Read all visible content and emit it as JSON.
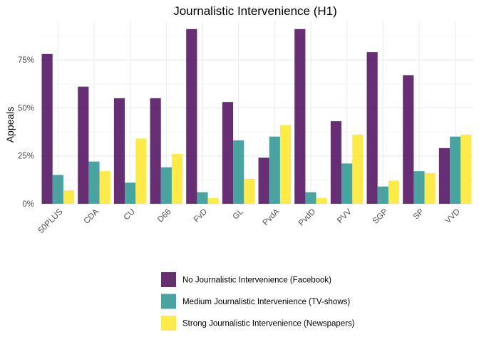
{
  "chart_data": {
    "type": "bar",
    "title": "Journalistic Intervenience (H1)",
    "xlabel": "",
    "ylabel": "Appeals",
    "ylim": [
      0,
      0.95
    ],
    "y_ticks": [
      0,
      0.25,
      0.5,
      0.75
    ],
    "y_tick_labels": [
      "0%",
      "25%",
      "50%",
      "75%"
    ],
    "grid": true,
    "legend_position": "bottom",
    "categories": [
      "50PLUS",
      "CDA",
      "CU",
      "D66",
      "FvD",
      "GL",
      "PvdA",
      "PvdD",
      "PVV",
      "SGP",
      "SP",
      "VVD"
    ],
    "series": [
      {
        "name": "No Journalistic Intervenience (Facebook)",
        "color": "#440154",
        "values": [
          0.78,
          0.61,
          0.55,
          0.55,
          0.91,
          0.53,
          0.24,
          0.91,
          0.43,
          0.79,
          0.67,
          0.29
        ]
      },
      {
        "name": "Medium Journalistic Intervenience (TV-shows)",
        "color": "#21908C",
        "values": [
          0.15,
          0.22,
          0.11,
          0.19,
          0.06,
          0.33,
          0.35,
          0.06,
          0.21,
          0.09,
          0.17,
          0.35
        ]
      },
      {
        "name": "Strong Journalistic Intervenience (Newspapers)",
        "color": "#FDE725",
        "values": [
          0.07,
          0.17,
          0.34,
          0.26,
          0.03,
          0.13,
          0.41,
          0.03,
          0.36,
          0.12,
          0.16,
          0.36
        ]
      }
    ]
  }
}
